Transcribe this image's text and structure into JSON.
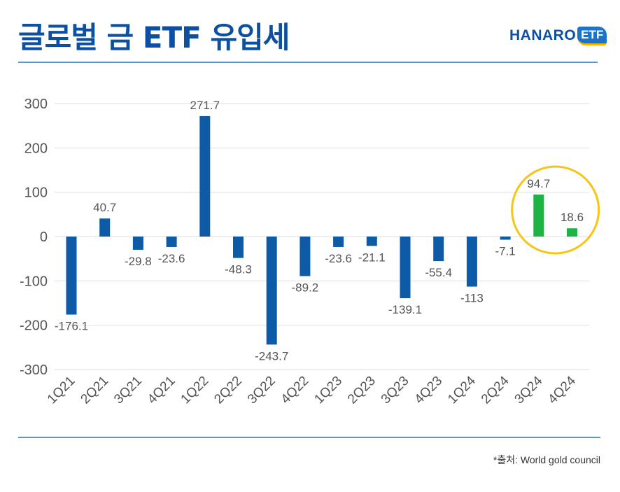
{
  "header": {
    "title": "글로벌 금 ETF 유입세",
    "logo_text": "HANARO",
    "logo_badge": "ETF"
  },
  "footer": {
    "source": "*출처: World gold council"
  },
  "colors": {
    "accent": "#0d4fa0",
    "bar_default": "#0d5aa7",
    "bar_highlight": "#1db345",
    "highlight_ring": "#f5c518",
    "rule": "#5b92d1"
  },
  "chart_data": {
    "type": "bar",
    "title": "",
    "xlabel": "",
    "ylabel": "",
    "ylim": [
      -300,
      300
    ],
    "yticks": [
      300,
      200,
      100,
      0,
      -100,
      -200,
      -300
    ],
    "grid": true,
    "categories": [
      "1Q21",
      "2Q21",
      "3Q21",
      "4Q21",
      "1Q22",
      "2Q22",
      "3Q22",
      "4Q22",
      "1Q23",
      "2Q23",
      "3Q23",
      "4Q23",
      "1Q24",
      "2Q24",
      "3Q24",
      "4Q24"
    ],
    "values": [
      -176.1,
      40.7,
      -29.8,
      -23.6,
      271.7,
      -48.3,
      -243.7,
      -89.2,
      -23.6,
      -21.1,
      -139.1,
      -55.4,
      -113,
      -7.1,
      94.7,
      18.6
    ],
    "labels": [
      "-176.1",
      "40.7",
      "-29.8",
      "-23.6",
      "271.7",
      "-48.3",
      "-243.7",
      "-89.2",
      "-23.6",
      "-21.1",
      "-139.1",
      "-55.4",
      "-113",
      "-7.1",
      "94.7",
      "18.6"
    ],
    "highlighted_categories": [
      "3Q24",
      "4Q24"
    ]
  }
}
